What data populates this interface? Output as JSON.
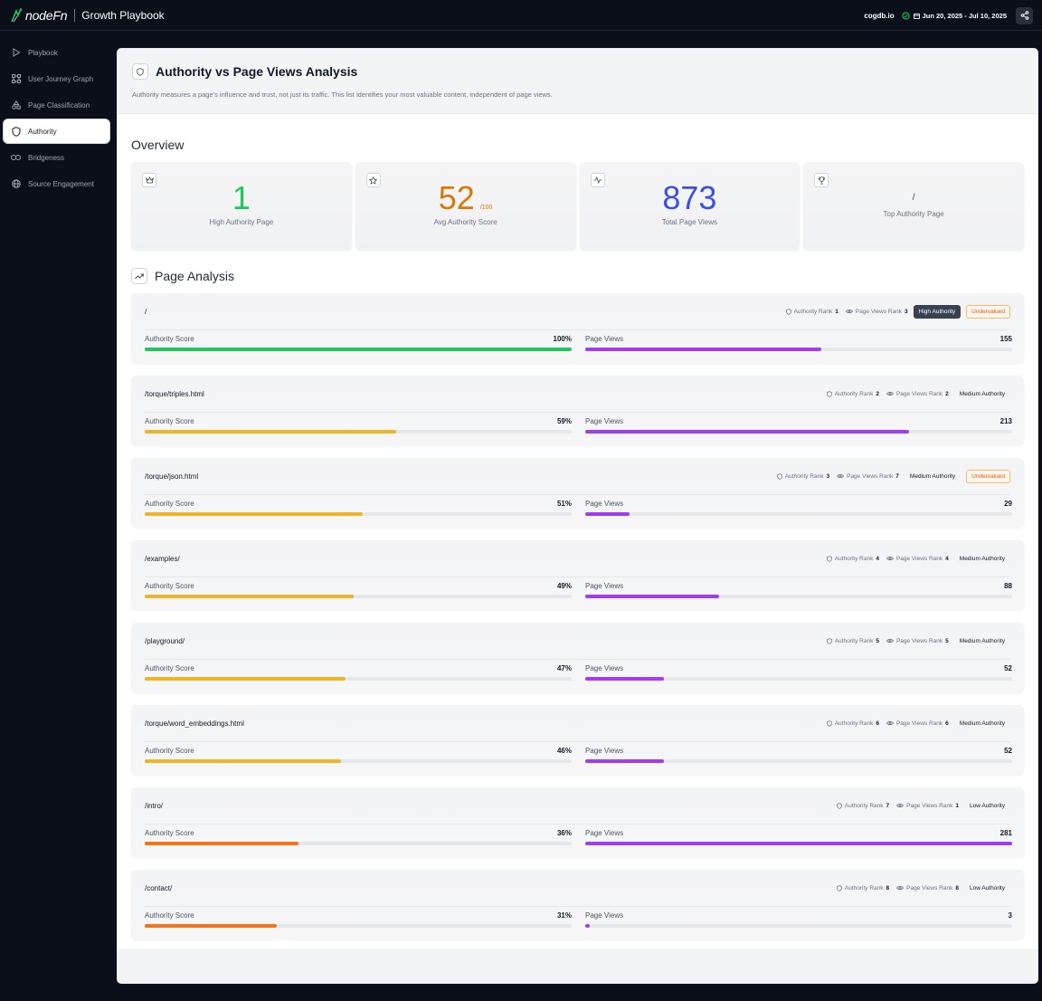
{
  "app": {
    "logo_text": "nodeFn",
    "title": "Growth Playbook",
    "domain": "cogdb.io",
    "date_range": "Jun 20, 2025 - Jul 10, 2025"
  },
  "sidebar": {
    "items": [
      {
        "label": "Playbook",
        "icon": "play-icon"
      },
      {
        "label": "User Journey Graph",
        "icon": "graph-icon"
      },
      {
        "label": "Page Classification",
        "icon": "shapes-icon"
      },
      {
        "label": "Authority",
        "icon": "shield-icon",
        "active": true
      },
      {
        "label": "Bridgeness",
        "icon": "link-icon"
      },
      {
        "label": "Source Engagement",
        "icon": "globe-icon"
      }
    ]
  },
  "header": {
    "title": "Authority vs Page Views Analysis",
    "subtitle": "Authority measures a page's influence and trust, not just its traffic. This list identifies your most valuable content, independent of page views."
  },
  "overview": {
    "title": "Overview",
    "high_authority": {
      "value": "1",
      "label": "High Authority Page",
      "color": "#22c55e"
    },
    "avg_score": {
      "value": "52",
      "suffix": "/100",
      "label": "Avg Authority Score",
      "color": "#d97706"
    },
    "total_views": {
      "value": "873",
      "label": "Total Page Views",
      "color": "#3b4fe0"
    },
    "top_page": {
      "value": "/",
      "label": "Top Authority Page"
    }
  },
  "analysis": {
    "title": "Page Analysis",
    "authority_label": "Authority Score",
    "views_label": "Page Views",
    "authority_rank_label": "Authority Rank",
    "views_rank_label": "Page Views Rank",
    "pages": [
      {
        "path": "/",
        "auth_rank": "1",
        "views_rank": "3",
        "level": "High Authority",
        "level_type": "high",
        "undervalued": "Undervalued",
        "score": "100%",
        "score_frac": 1.0,
        "score_color": "#22c55e",
        "views": "155",
        "views_frac": 0.552
      },
      {
        "path": "/torque/triples.html",
        "auth_rank": "2",
        "views_rank": "2",
        "level": "Medium Authority",
        "level_type": "medium",
        "undervalued": "",
        "score": "59%",
        "score_frac": 0.59,
        "score_color": "#f0b429",
        "views": "213",
        "views_frac": 0.758
      },
      {
        "path": "/torque/json.html",
        "auth_rank": "3",
        "views_rank": "7",
        "level": "Medium Authority",
        "level_type": "medium",
        "undervalued": "Undervalued",
        "score": "51%",
        "score_frac": 0.51,
        "score_color": "#f0b429",
        "views": "29",
        "views_frac": 0.103
      },
      {
        "path": "/examples/",
        "auth_rank": "4",
        "views_rank": "4",
        "level": "Medium Authority",
        "level_type": "medium",
        "undervalued": "",
        "score": "49%",
        "score_frac": 0.49,
        "score_color": "#f0b429",
        "views": "88",
        "views_frac": 0.313
      },
      {
        "path": "/playground/",
        "auth_rank": "5",
        "views_rank": "5",
        "level": "Medium Authority",
        "level_type": "medium",
        "undervalued": "",
        "score": "47%",
        "score_frac": 0.47,
        "score_color": "#f0b429",
        "views": "52",
        "views_frac": 0.185
      },
      {
        "path": "/torque/word_embeddings.html",
        "auth_rank": "6",
        "views_rank": "6",
        "level": "Medium Authority",
        "level_type": "medium",
        "undervalued": "",
        "score": "46%",
        "score_frac": 0.46,
        "score_color": "#f0b429",
        "views": "52",
        "views_frac": 0.185
      },
      {
        "path": "/intro/",
        "auth_rank": "7",
        "views_rank": "1",
        "level": "Low Authority",
        "level_type": "low",
        "undervalued": "",
        "score": "36%",
        "score_frac": 0.36,
        "score_color": "#f97316",
        "views": "281",
        "views_frac": 1.0
      },
      {
        "path": "/contact/",
        "auth_rank": "8",
        "views_rank": "8",
        "level": "Low Authority",
        "level_type": "low",
        "undervalued": "",
        "score": "31%",
        "score_frac": 0.31,
        "score_color": "#f97316",
        "views": "3",
        "views_frac": 0.011
      }
    ],
    "views_color": "#a33cf0"
  }
}
